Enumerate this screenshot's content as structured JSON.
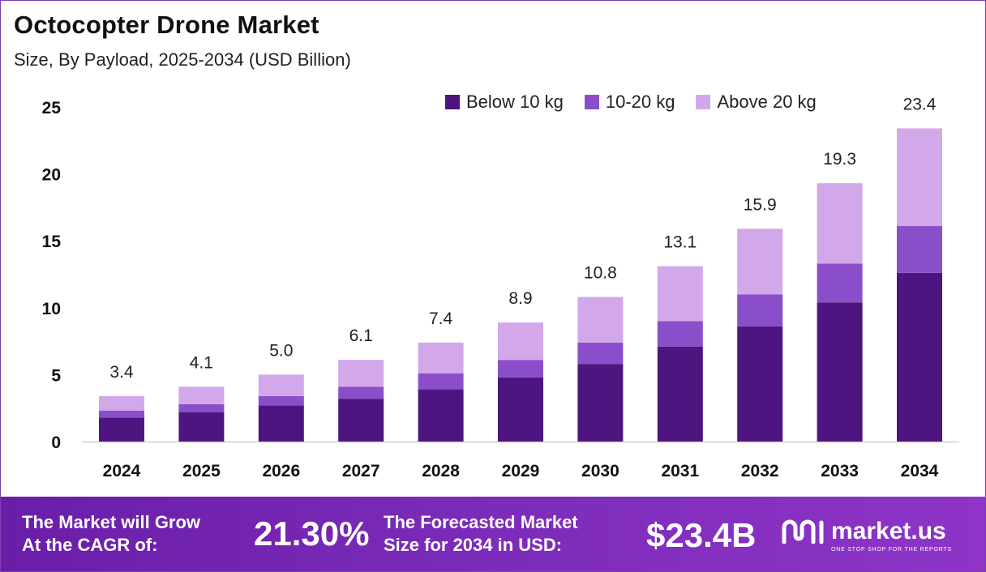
{
  "title": "Octocopter Drone Market",
  "subtitle": "Size, By Payload, 2025-2034 (USD Billion)",
  "colors": {
    "below_10": "#4e1580",
    "mid_10_20": "#8b4ecb",
    "above_20": "#d2a8ea",
    "footer_bg": "#7a2ab8"
  },
  "chart_data": {
    "type": "bar",
    "stacked": true,
    "categories": [
      "2024",
      "2025",
      "2026",
      "2027",
      "2028",
      "2029",
      "2030",
      "2031",
      "2032",
      "2033",
      "2034"
    ],
    "series": [
      {
        "name": "Below 10 kg",
        "values": [
          1.8,
          2.2,
          2.7,
          3.2,
          3.9,
          4.8,
          5.8,
          7.1,
          8.6,
          10.4,
          12.6
        ]
      },
      {
        "name": "10-20 kg",
        "values": [
          0.5,
          0.6,
          0.7,
          0.9,
          1.2,
          1.3,
          1.6,
          1.9,
          2.4,
          2.9,
          3.5
        ]
      },
      {
        "name": "Above 20 kg",
        "values": [
          1.1,
          1.3,
          1.6,
          2.0,
          2.3,
          2.8,
          3.4,
          4.1,
          4.9,
          6.0,
          7.3
        ]
      }
    ],
    "totals": [
      "3.4",
      "4.1",
      "5.0",
      "6.1",
      "7.4",
      "8.9",
      "10.8",
      "13.1",
      "15.9",
      "19.3",
      "23.4"
    ],
    "yticks": [
      0,
      5,
      10,
      15,
      20,
      25
    ],
    "ylim": [
      0,
      25
    ],
    "xlabel": "",
    "ylabel": "",
    "legend_position": "top-right",
    "grid": false
  },
  "footer": {
    "cagr_label_line1": "The Market will Grow",
    "cagr_label_line2": "At the CAGR of:",
    "cagr_value": "21.30%",
    "forecast_label_line1": "The Forecasted Market",
    "forecast_label_line2": "Size for 2034 in USD:",
    "forecast_value": "$23.4B",
    "logo_name": "market.us",
    "logo_tagline": "ONE STOP SHOP FOR THE REPORTS",
    "logo_icon": "market-us-logo-icon"
  }
}
